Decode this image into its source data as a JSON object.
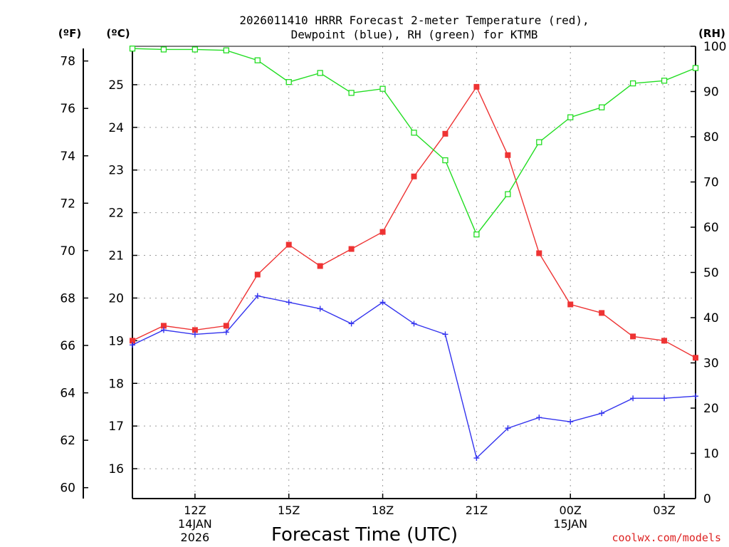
{
  "chart_data": {
    "type": "line",
    "title_line1": "2026011410 HRRR Forecast 2-meter Temperature (red),",
    "title_line2": "Dewpoint (blue), RH (green) for KTMB",
    "left_unit_f": "(ºF)",
    "left_unit_c": "(ºC)",
    "right_unit": "(RH)",
    "xlabel": "Forecast Time (UTC)",
    "credit": "coolwx.com/models",
    "x_hours": [
      0,
      1,
      2,
      3,
      4,
      5,
      6,
      7,
      8,
      9,
      10,
      11,
      12,
      13,
      14,
      15,
      16,
      17,
      18
    ],
    "x_range": [
      0,
      18
    ],
    "x_ticks": [
      {
        "hour": 2,
        "label": "12Z",
        "sub1": "14JAN",
        "sub2": "2026"
      },
      {
        "hour": 5,
        "label": "15Z",
        "sub1": "",
        "sub2": ""
      },
      {
        "hour": 8,
        "label": "18Z",
        "sub1": "",
        "sub2": ""
      },
      {
        "hour": 11,
        "label": "21Z",
        "sub1": "",
        "sub2": ""
      },
      {
        "hour": 14,
        "label": "00Z",
        "sub1": "15JAN",
        "sub2": ""
      },
      {
        "hour": 17,
        "label": "03Z",
        "sub1": "",
        "sub2": ""
      }
    ],
    "celsius_range": [
      15.3,
      25.9
    ],
    "celsius_ticks": [
      "16",
      "17",
      "18",
      "19",
      "20",
      "21",
      "22",
      "23",
      "24",
      "25"
    ],
    "fahrenheit_ticks": [
      "60",
      "62",
      "64",
      "66",
      "68",
      "70",
      "72",
      "74",
      "76",
      "78"
    ],
    "rh_range": [
      0,
      100
    ],
    "rh_ticks": [
      "0",
      "10",
      "20",
      "30",
      "40",
      "50",
      "60",
      "70",
      "80",
      "90",
      "100"
    ],
    "series": [
      {
        "name": "Temperature",
        "unit": "C",
        "color": "#ee3333",
        "marker": "filled-square",
        "values": [
          19.0,
          19.35,
          19.25,
          19.35,
          20.55,
          21.25,
          20.75,
          21.15,
          21.55,
          22.85,
          23.85,
          24.95,
          23.35,
          21.05,
          19.85,
          19.65,
          19.1,
          19.0,
          18.6
        ]
      },
      {
        "name": "Dewpoint",
        "unit": "C",
        "color": "#3333ee",
        "marker": "plus",
        "values": [
          18.9,
          19.25,
          19.15,
          19.2,
          20.05,
          19.9,
          19.75,
          19.4,
          19.9,
          19.4,
          19.15,
          16.25,
          16.95,
          17.2,
          17.1,
          17.3,
          17.65,
          17.65,
          17.7
        ]
      },
      {
        "name": "RH",
        "unit": "%",
        "color": "#22dd22",
        "marker": "open-square",
        "values": [
          99.5,
          99.3,
          99.3,
          99.1,
          96.9,
          92.1,
          94.1,
          89.7,
          90.6,
          80.9,
          74.8,
          58.4,
          67.3,
          78.8,
          84.3,
          86.5,
          91.8,
          92.4,
          95.2
        ]
      }
    ]
  }
}
